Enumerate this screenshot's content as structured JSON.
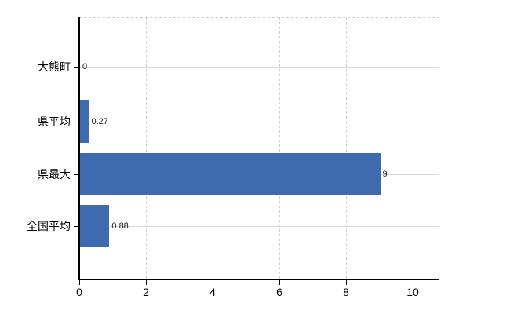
{
  "chart_data": {
    "type": "bar",
    "orientation": "horizontal",
    "title": "",
    "xlabel": "",
    "ylabel": "",
    "categories": [
      "大熊町",
      "県平均",
      "県最大",
      "全国平均"
    ],
    "values": [
      0,
      0.27,
      9,
      0.88
    ],
    "value_labels": [
      "0",
      "0.27",
      "9",
      "0.88"
    ],
    "x_tick_values": [
      0,
      2,
      4,
      6,
      8,
      10
    ],
    "x_tick_labels": [
      "0",
      "2",
      "4",
      "6",
      "8",
      "10"
    ],
    "xlim": [
      0,
      10.8
    ],
    "grid": true,
    "legend": false,
    "colors": {
      "bar": "#3e6baf",
      "axis": "#000000",
      "h_grid": "#d6dad6",
      "v_grid": "#c9d0c9",
      "value_label": "#1a1a1a",
      "tick_label": "#000000",
      "background": "#ffffff"
    }
  }
}
